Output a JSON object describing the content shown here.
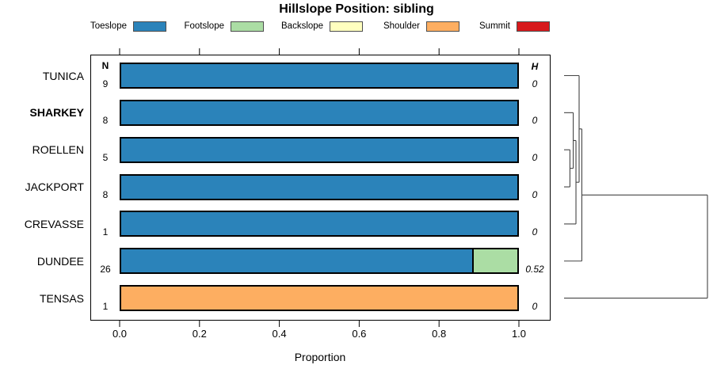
{
  "chart_data": {
    "type": "bar",
    "orientation": "horizontal",
    "stacked": true,
    "title": "Hillslope Position: sibling",
    "xlabel": "Proportion",
    "xlim": [
      0,
      1
    ],
    "x_tick_labels": [
      "0.0",
      "0.2",
      "0.4",
      "0.6",
      "0.8",
      "1.0"
    ],
    "grid": false,
    "legend_position": "top",
    "n_column_header": "N",
    "h_column_header": "H",
    "categories": [
      "TUNICA",
      "SHARKEY",
      "ROELLEN",
      "JACKPORT",
      "CREVASSE",
      "DUNDEE",
      "TENSAS"
    ],
    "highlighted_category": "SHARKEY",
    "n_labels": [
      "9",
      "8",
      "5",
      "8",
      "1",
      "26",
      "1"
    ],
    "h_labels": [
      "0",
      "0",
      "0",
      "0",
      "0",
      "0.52",
      "0"
    ],
    "series": [
      {
        "name": "Toeslope",
        "color": "#2B83BA",
        "values": [
          1,
          1,
          1,
          1,
          1,
          0.885,
          0
        ]
      },
      {
        "name": "Footslope",
        "color": "#ABDDA4",
        "values": [
          0,
          0,
          0,
          0,
          0,
          0.115,
          0
        ]
      },
      {
        "name": "Backslope",
        "color": "#FFFFBF",
        "values": [
          0,
          0,
          0,
          0,
          0,
          0,
          0
        ]
      },
      {
        "name": "Shoulder",
        "color": "#FDAE61",
        "values": [
          0,
          0,
          0,
          0,
          0,
          0,
          1
        ]
      },
      {
        "name": "Summit",
        "color": "#D7191C",
        "values": [
          0,
          0,
          0,
          0,
          0,
          0,
          0
        ]
      }
    ],
    "dendrogram": {
      "leaf_order": [
        "TUNICA",
        "SHARKEY",
        "ROELLEN",
        "JACKPORT",
        "CREVASSE",
        "DUNDEE",
        "TENSAS"
      ],
      "merges": [
        {
          "id": "m1",
          "a": "ROELLEN",
          "b": "JACKPORT",
          "height": 0.041
        },
        {
          "id": "m2",
          "a": "SHARKEY",
          "b": "m1",
          "height": 0.064
        },
        {
          "id": "m3",
          "a": "m2",
          "b": "CREVASSE",
          "height": 0.083
        },
        {
          "id": "m4",
          "a": "TUNICA",
          "b": "m3",
          "height": 0.105
        },
        {
          "id": "m5",
          "a": "m4",
          "b": "DUNDEE",
          "height": 0.124
        },
        {
          "id": "m6",
          "a": "m5",
          "b": "TENSAS",
          "height": 1.0
        }
      ]
    }
  }
}
